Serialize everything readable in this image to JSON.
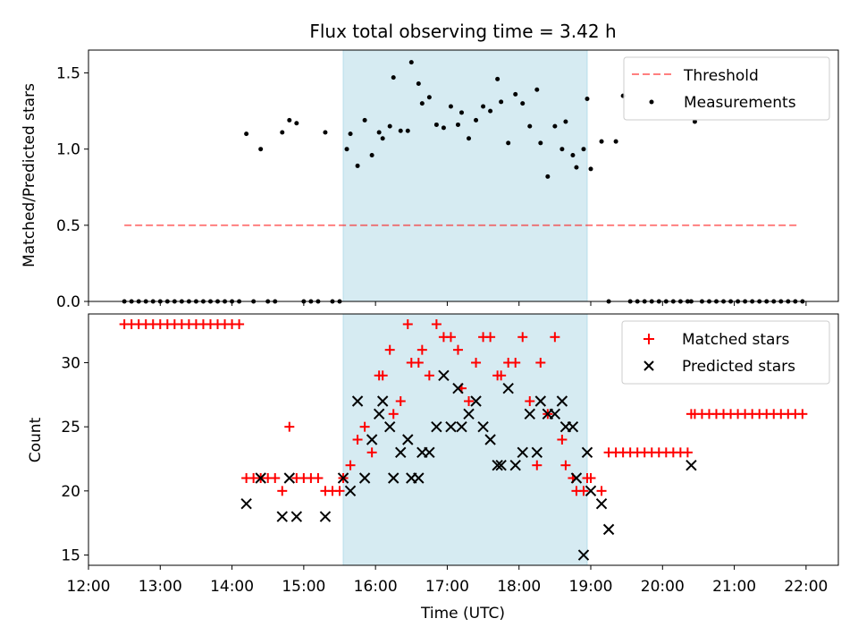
{
  "title": "Flux total observing time = 3.42 h",
  "colors": {
    "highlight": "#add8e6",
    "threshold": "#ff0000",
    "measurement": "#000000",
    "matched": "#ff0000",
    "predicted": "#000000"
  },
  "chart_data": [
    {
      "type": "scatter",
      "panel": "top",
      "ylabel": "Matched/Predicted stars",
      "xlabel": "",
      "xlim": [
        12.0,
        22.45
      ],
      "ylim": [
        0,
        1.65
      ],
      "yticks": [
        0.0,
        0.5,
        1.0,
        1.5
      ],
      "ytick_labels": [
        "0.0",
        "0.5",
        "1.0",
        "1.5"
      ],
      "highlight_span": [
        15.55,
        18.95
      ],
      "legend": {
        "position": "top-right",
        "entries": [
          "Threshold",
          "Measurements"
        ]
      },
      "threshold": {
        "name": "Threshold",
        "y": 0.5,
        "x": [
          12.5,
          21.9
        ]
      },
      "measurements": {
        "name": "Measurements",
        "x": [
          12.5,
          12.6,
          12.7,
          12.8,
          12.9,
          13.0,
          13.1,
          13.2,
          13.3,
          13.4,
          13.5,
          13.6,
          13.7,
          13.8,
          13.9,
          14.0,
          14.1,
          14.2,
          14.3,
          14.4,
          14.5,
          14.6,
          14.7,
          14.8,
          14.9,
          15.0,
          15.1,
          15.2,
          15.3,
          15.4,
          15.5,
          15.6,
          15.65,
          15.75,
          15.85,
          15.95,
          16.05,
          16.1,
          16.2,
          16.25,
          16.35,
          16.45,
          16.5,
          16.6,
          16.65,
          16.75,
          16.85,
          16.95,
          17.05,
          17.15,
          17.2,
          17.3,
          17.4,
          17.5,
          17.6,
          17.7,
          17.75,
          17.85,
          17.95,
          18.05,
          18.15,
          18.25,
          18.3,
          18.4,
          18.5,
          18.6,
          18.65,
          18.75,
          18.8,
          18.9,
          18.95,
          19.0,
          19.15,
          19.25,
          19.35,
          19.45,
          19.55,
          19.65,
          19.75,
          19.85,
          19.95,
          20.05,
          20.15,
          20.25,
          20.35,
          20.4,
          20.45,
          20.55,
          20.65,
          20.75,
          20.85,
          20.95,
          21.05,
          21.15,
          21.25,
          21.35,
          21.45,
          21.55,
          21.65,
          21.75,
          21.85,
          21.95
        ],
        "y": [
          0,
          0,
          0,
          0,
          0,
          0,
          0,
          0,
          0,
          0,
          0,
          0,
          0,
          0,
          0,
          0,
          0,
          1.1,
          0,
          1.0,
          0,
          0,
          1.11,
          1.19,
          1.17,
          0,
          0,
          0,
          1.11,
          0,
          0,
          1.0,
          1.1,
          0.89,
          1.19,
          0.96,
          1.11,
          1.07,
          1.15,
          1.47,
          1.12,
          1.12,
          1.57,
          1.43,
          1.3,
          1.34,
          1.16,
          1.14,
          1.28,
          1.16,
          1.24,
          1.07,
          1.19,
          1.28,
          1.25,
          1.46,
          1.31,
          1.04,
          1.36,
          1.3,
          1.15,
          1.39,
          1.04,
          0.82,
          1.15,
          1.0,
          1.18,
          0.96,
          0.88,
          1.0,
          1.33,
          0.87,
          1.05,
          0,
          1.05,
          1.35,
          0,
          0,
          0,
          0,
          0,
          0,
          0,
          0,
          0,
          0,
          1.18,
          0,
          0,
          0,
          0,
          0,
          0,
          0,
          0,
          0,
          0,
          0,
          0,
          0,
          0,
          0
        ]
      }
    },
    {
      "type": "scatter",
      "panel": "bottom",
      "ylabel": "Count",
      "xlabel": "Time (UTC)",
      "xlim": [
        12.0,
        22.45
      ],
      "ylim": [
        14.2,
        33.8
      ],
      "yticks": [
        15,
        20,
        25,
        30
      ],
      "ytick_labels": [
        "15",
        "20",
        "25",
        "30"
      ],
      "xticks": [
        12,
        13,
        14,
        15,
        16,
        17,
        18,
        19,
        20,
        21,
        22
      ],
      "xtick_labels": [
        "12:00",
        "13:00",
        "14:00",
        "15:00",
        "16:00",
        "17:00",
        "18:00",
        "19:00",
        "20:00",
        "21:00",
        "22:00"
      ],
      "highlight_span": [
        15.55,
        18.95
      ],
      "legend": {
        "position": "top-right",
        "entries": [
          "Matched stars",
          "Predicted stars"
        ]
      },
      "series": [
        {
          "name": "Matched stars",
          "marker": "plus",
          "x": [
            12.5,
            12.6,
            12.7,
            12.8,
            12.9,
            13.0,
            13.1,
            13.2,
            13.3,
            13.4,
            13.5,
            13.6,
            13.7,
            13.8,
            13.9,
            14.0,
            14.1,
            14.2,
            14.3,
            14.4,
            14.5,
            14.6,
            14.7,
            14.8,
            14.9,
            15.0,
            15.1,
            15.2,
            15.3,
            15.4,
            15.5,
            15.55,
            15.65,
            15.75,
            15.85,
            15.95,
            16.05,
            16.1,
            16.2,
            16.25,
            16.35,
            16.45,
            16.5,
            16.6,
            16.65,
            16.75,
            16.85,
            16.95,
            17.05,
            17.15,
            17.2,
            17.3,
            17.4,
            17.5,
            17.6,
            17.7,
            17.75,
            17.85,
            17.95,
            18.05,
            18.15,
            18.25,
            18.3,
            18.4,
            18.5,
            18.6,
            18.65,
            18.75,
            18.8,
            18.9,
            18.95,
            19.0,
            19.15,
            19.25,
            19.35,
            19.45,
            19.55,
            19.65,
            19.75,
            19.85,
            19.95,
            20.05,
            20.15,
            20.25,
            20.35,
            20.4,
            20.45,
            20.55,
            20.65,
            20.75,
            20.85,
            20.95,
            21.05,
            21.15,
            21.25,
            21.35,
            21.45,
            21.55,
            21.65,
            21.75,
            21.85,
            21.95
          ],
          "y": [
            33,
            33,
            33,
            33,
            33,
            33,
            33,
            33,
            33,
            33,
            33,
            33,
            33,
            33,
            33,
            33,
            33,
            21,
            21,
            21,
            21,
            21,
            20,
            25,
            21,
            21,
            21,
            21,
            20,
            20,
            20,
            21,
            22,
            24,
            25,
            23,
            29,
            29,
            31,
            26,
            27,
            33,
            30,
            30,
            31,
            29,
            33,
            32,
            32,
            31,
            28,
            27,
            30,
            32,
            32,
            29,
            29,
            30,
            30,
            32,
            27,
            22,
            30,
            26,
            32,
            24,
            22,
            21,
            20,
            20,
            21,
            21,
            20,
            23,
            23,
            23,
            23,
            23,
            23,
            23,
            23,
            23,
            23,
            23,
            23,
            26,
            26,
            26,
            26,
            26,
            26,
            26,
            26,
            26,
            26,
            26,
            26,
            26,
            26,
            26,
            26,
            26
          ]
        },
        {
          "name": "Predicted stars",
          "marker": "x",
          "x": [
            14.2,
            14.4,
            14.7,
            14.8,
            14.9,
            15.3,
            15.55,
            15.65,
            15.75,
            15.85,
            15.95,
            16.05,
            16.1,
            16.2,
            16.25,
            16.35,
            16.45,
            16.5,
            16.6,
            16.65,
            16.75,
            16.85,
            16.95,
            17.05,
            17.15,
            17.2,
            17.3,
            17.4,
            17.5,
            17.6,
            17.7,
            17.75,
            17.85,
            17.95,
            18.05,
            18.15,
            18.25,
            18.3,
            18.4,
            18.5,
            18.6,
            18.65,
            18.75,
            18.8,
            18.9,
            18.95,
            19.0,
            19.15,
            19.25,
            20.4
          ],
          "y": [
            19,
            21,
            18,
            21,
            18,
            18,
            21,
            20,
            27,
            21,
            24,
            26,
            27,
            25,
            21,
            23,
            24,
            21,
            21,
            23,
            23,
            25,
            29,
            25,
            28,
            25,
            26,
            27,
            25,
            24,
            22,
            22,
            28,
            22,
            23,
            26,
            23,
            27,
            26,
            26,
            27,
            25,
            25,
            21,
            15,
            23,
            20,
            19,
            17,
            22
          ]
        }
      ]
    }
  ]
}
